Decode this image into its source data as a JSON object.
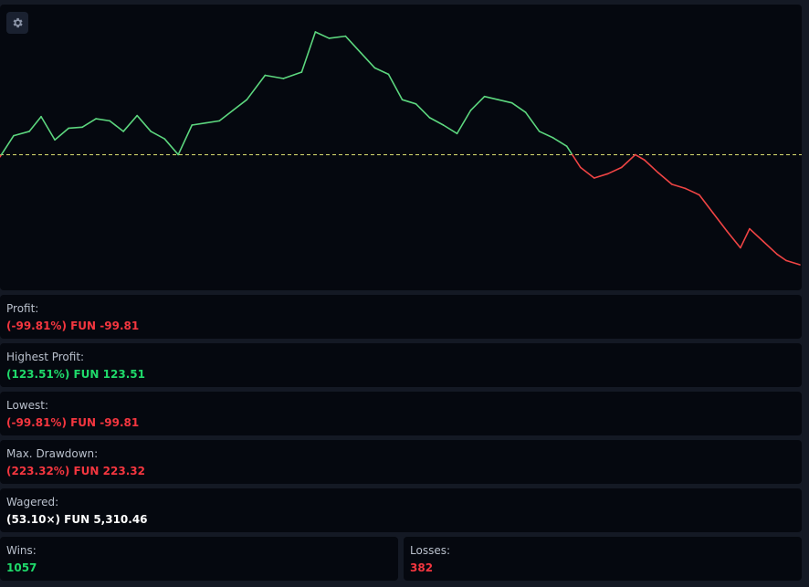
{
  "settings": {
    "icon": "gear-icon"
  },
  "chart_data": {
    "type": "line",
    "baseline": 0,
    "positive_color": "#5cd67e",
    "negative_color": "#ef4444",
    "baseline_color": "#d8dc70",
    "grid": false,
    "series": [
      {
        "x": [
          0,
          15,
          32,
          45,
          60,
          75,
          90,
          105,
          120,
          135,
          150,
          165,
          180,
          195,
          210,
          225,
          240,
          255,
          270,
          290,
          310,
          330,
          345,
          360,
          378,
          395,
          410,
          425,
          440,
          455,
          470,
          485,
          500,
          515,
          530,
          545,
          560,
          575,
          590,
          605,
          620,
          635,
          650,
          665,
          680,
          695,
          705,
          720,
          735,
          750,
          765,
          780,
          795,
          810,
          820,
          835,
          850,
          860,
          875
        ],
        "values": [
          -2,
          18,
          22,
          36,
          14,
          25,
          26,
          34,
          32,
          22,
          37,
          22,
          15,
          0,
          28,
          30,
          32,
          42,
          52,
          75,
          72,
          78,
          116,
          110,
          112,
          96,
          82,
          76,
          52,
          48,
          35,
          28,
          20,
          42,
          55,
          52,
          49,
          40,
          22,
          16,
          8,
          -12,
          -22,
          -18,
          -12,
          0,
          -5,
          -17,
          -28,
          -32,
          -38,
          -55,
          -72,
          -88,
          -70,
          -82,
          -94,
          -100,
          -104
        ]
      }
    ]
  },
  "stats": {
    "profit": {
      "label": "Profit:",
      "value": "(-99.81%) FUN -99.81",
      "color": "#f4363f"
    },
    "highest_profit": {
      "label": "Highest Profit:",
      "value": "(123.51%) FUN 123.51",
      "color": "#1fd96a"
    },
    "lowest": {
      "label": "Lowest:",
      "value": "(-99.81%) FUN -99.81",
      "color": "#f4363f"
    },
    "max_drawdown": {
      "label": "Max. Drawdown:",
      "value": "(223.32%) FUN 223.32",
      "color": "#f4363f"
    },
    "wagered": {
      "label": "Wagered:",
      "value": "(53.10×) FUN 5,310.46",
      "color": "#ffffff"
    },
    "wins": {
      "label": "Wins:",
      "value": "1057",
      "color": "#1fd96a"
    },
    "losses": {
      "label": "Losses:",
      "value": "382",
      "color": "#f4363f"
    }
  }
}
